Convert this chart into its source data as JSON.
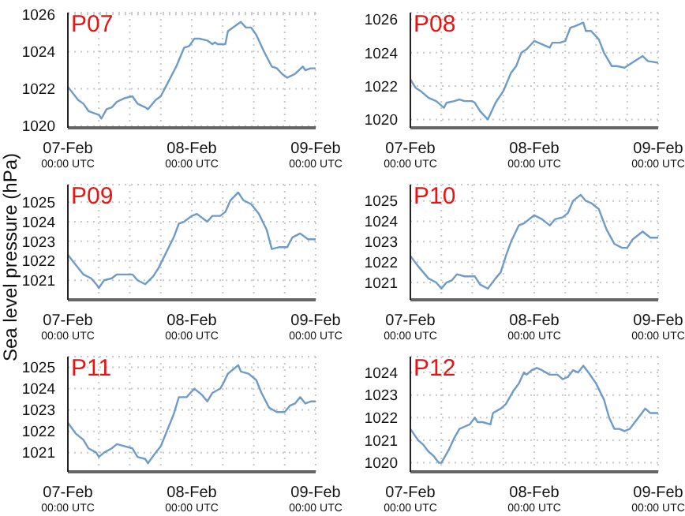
{
  "chart_data": [
    {
      "type": "line",
      "title": "P07",
      "x": [
        "--02-07T00:00",
        "--02-07T02:00",
        "--02-07T03:00",
        "--02-07T04:00",
        "--02-07T06:00",
        "--02-07T06:30",
        "--02-07T07:30",
        "--02-07T08:30",
        "--02-07T09:30",
        "--02-07T11:00",
        "--02-07T12:30",
        "--02-07T13:30",
        "--02-07T15:00",
        "--02-07T15:30",
        "--02-07T17:00",
        "--02-07T18:00",
        "--02-07T19:30",
        "--02-07T21:00",
        "--02-07T22:30",
        "--02-07T23:30",
        "--02-08T00:30",
        "--02-08T01:30",
        "--02-08T03:00",
        "--02-08T04:00",
        "--02-08T04:30",
        "--02-08T05:00",
        "--02-08T06:30",
        "--02-08T07:00",
        "--02-08T08:30",
        "--02-08T09:30",
        "--02-08T10:30",
        "--02-08T11:30",
        "--02-08T12:30",
        "--02-08T14:00",
        "--02-08T15:30",
        "--02-08T16:30",
        "--02-08T17:30",
        "--02-08T18:30",
        "--02-08T20:00",
        "--02-08T21:30",
        "--02-08T22:00",
        "--02-08T23:00",
        "--02-09T00:00"
      ],
      "series": [
        {
          "color": "#6f9bc8",
          "values": [
            1022.1,
            1021.4,
            1021.2,
            1020.8,
            1020.6,
            1020.4,
            1020.9,
            1021.0,
            1021.3,
            1021.5,
            1021.6,
            1021.2,
            1021.0,
            1020.9,
            1021.4,
            1021.6,
            1022.4,
            1023.2,
            1024.2,
            1024.3,
            1024.7,
            1024.7,
            1024.6,
            1024.4,
            1024.5,
            1024.4,
            1024.4,
            1025.1,
            1025.4,
            1025.6,
            1025.3,
            1025.3,
            1024.9,
            1024.0,
            1023.2,
            1023.1,
            1022.8,
            1022.6,
            1022.8,
            1023.2,
            1023.0,
            1023.1,
            1023.1
          ]
        }
      ],
      "xlim": [
        "--02-07T00:00",
        "--02-09T00:00"
      ],
      "xticks": [
        {
          "value": "--02-07T00:00",
          "label": "07-Feb\n00:00 UTC"
        },
        {
          "value": "--02-07T06:00",
          "label": null
        },
        {
          "value": "--02-07T12:00",
          "label": null
        },
        {
          "value": "--02-07T18:00",
          "label": null
        },
        {
          "value": "--02-08T00:00",
          "label": "08-Feb\n00:00 UTC"
        },
        {
          "value": "--02-08T06:00",
          "label": null
        },
        {
          "value": "--02-08T12:00",
          "label": null
        },
        {
          "value": "--02-08T18:00",
          "label": null
        },
        {
          "value": "--02-09T00:00",
          "label": "09-Feb\n00:00 UTC"
        }
      ],
      "ylim": [
        1019.9,
        1026.1
      ],
      "yticks": [
        1020,
        1022,
        1024,
        1026
      ],
      "grid": true
    },
    {
      "type": "line",
      "title": "P08",
      "x": [
        "--02-07T00:00",
        "--02-07T01:00",
        "--02-07T02:00",
        "--02-07T03:30",
        "--02-07T05:00",
        "--02-07T06:30",
        "--02-07T07:00",
        "--02-07T08:30",
        "--02-07T09:30",
        "--02-07T10:30",
        "--02-07T12:00",
        "--02-07T12:30",
        "--02-07T13:30",
        "--02-07T15:00",
        "--02-07T16:30",
        "--02-07T18:00",
        "--02-07T19:30",
        "--02-07T20:30",
        "--02-07T21:30",
        "--02-07T22:30",
        "--02-08T00:00",
        "--02-08T01:30",
        "--02-08T03:00",
        "--02-08T03:30",
        "--02-08T05:00",
        "--02-08T06:00",
        "--02-08T07:00",
        "--02-08T08:00",
        "--02-08T09:30",
        "--02-08T10:00",
        "--02-08T11:00",
        "--02-08T12:30",
        "--02-08T13:30",
        "--02-08T15:00",
        "--02-08T16:00",
        "--02-08T17:30",
        "--02-08T19:30",
        "--02-08T21:00",
        "--02-08T22:00",
        "--02-09T00:00"
      ],
      "series": [
        {
          "color": "#6f9bc8",
          "values": [
            1022.4,
            1021.9,
            1021.7,
            1021.3,
            1021.1,
            1020.7,
            1021.0,
            1021.1,
            1021.2,
            1021.1,
            1021.1,
            1021.0,
            1020.5,
            1020.0,
            1021.0,
            1021.7,
            1022.8,
            1023.2,
            1024.0,
            1024.2,
            1024.7,
            1024.5,
            1024.3,
            1024.6,
            1024.6,
            1024.7,
            1025.5,
            1025.6,
            1025.8,
            1025.3,
            1025.3,
            1024.8,
            1024.0,
            1023.2,
            1023.2,
            1023.1,
            1023.5,
            1023.8,
            1023.5,
            1023.4
          ]
        }
      ],
      "xlim": [
        "--02-07T00:00",
        "--02-09T00:00"
      ],
      "xticks": [
        {
          "value": "--02-07T00:00",
          "label": "07-Feb\n00:00 UTC"
        },
        {
          "value": "--02-07T06:00",
          "label": null
        },
        {
          "value": "--02-07T12:00",
          "label": null
        },
        {
          "value": "--02-07T18:00",
          "label": null
        },
        {
          "value": "--02-08T00:00",
          "label": "08-Feb\n00:00 UTC"
        },
        {
          "value": "--02-08T06:00",
          "label": null
        },
        {
          "value": "--02-08T12:00",
          "label": null
        },
        {
          "value": "--02-08T18:00",
          "label": null
        },
        {
          "value": "--02-09T00:00",
          "label": "09-Feb\n00:00 UTC"
        }
      ],
      "ylim": [
        1019.5,
        1026.4
      ],
      "yticks": [
        1020,
        1022,
        1024,
        1026
      ],
      "grid": true
    },
    {
      "type": "line",
      "title": "P09",
      "ylabel": "Sea level pressure (hPa)",
      "x": [
        "--02-07T00:00",
        "--02-07T01:30",
        "--02-07T03:00",
        "--02-07T04:30",
        "--02-07T05:30",
        "--02-07T06:00",
        "--02-07T07:00",
        "--02-07T08:30",
        "--02-07T09:30",
        "--02-07T11:00",
        "--02-07T12:30",
        "--02-07T13:30",
        "--02-07T15:00",
        "--02-07T16:30",
        "--02-07T17:30",
        "--02-07T19:00",
        "--02-07T20:30",
        "--02-07T21:30",
        "--02-07T22:30",
        "--02-08T00:00",
        "--02-08T01:00",
        "--02-08T03:00",
        "--02-08T04:00",
        "--02-08T05:30",
        "--02-08T06:30",
        "--02-08T07:30",
        "--02-08T09:00",
        "--02-08T10:00",
        "--02-08T11:30",
        "--02-08T13:00",
        "--02-08T14:30",
        "--02-08T15:30",
        "--02-08T17:00",
        "--02-08T18:30",
        "--02-08T19:30",
        "--02-08T21:00",
        "--02-08T22:30",
        "--02-09T00:00"
      ],
      "series": [
        {
          "color": "#6f9bc8",
          "values": [
            1022.3,
            1021.8,
            1021.3,
            1021.1,
            1020.8,
            1020.6,
            1021.0,
            1021.1,
            1021.3,
            1021.3,
            1021.3,
            1021.0,
            1020.8,
            1021.2,
            1021.6,
            1022.4,
            1023.2,
            1023.9,
            1024.0,
            1024.3,
            1024.4,
            1024.0,
            1024.3,
            1024.3,
            1024.5,
            1025.1,
            1025.5,
            1025.1,
            1024.9,
            1024.4,
            1023.6,
            1022.6,
            1022.7,
            1022.7,
            1023.2,
            1023.4,
            1023.1,
            1023.1
          ]
        }
      ],
      "xlim": [
        "--02-07T00:00",
        "--02-09T00:00"
      ],
      "xticks": [
        {
          "value": "--02-07T00:00",
          "label": "07-Feb\n00:00 UTC"
        },
        {
          "value": "--02-07T06:00",
          "label": null
        },
        {
          "value": "--02-07T12:00",
          "label": null
        },
        {
          "value": "--02-07T18:00",
          "label": null
        },
        {
          "value": "--02-08T00:00",
          "label": "08-Feb\n00:00 UTC"
        },
        {
          "value": "--02-08T06:00",
          "label": null
        },
        {
          "value": "--02-08T12:00",
          "label": null
        },
        {
          "value": "--02-08T18:00",
          "label": null
        },
        {
          "value": "--02-09T00:00",
          "label": "09-Feb\n00:00 UTC"
        }
      ],
      "ylim": [
        1020,
        1025.9
      ],
      "yticks": [
        1021,
        1022,
        1023,
        1024,
        1025
      ],
      "grid": true
    },
    {
      "type": "line",
      "title": "P10",
      "x": [
        "--02-07T00:00",
        "--02-07T01:30",
        "--02-07T03:30",
        "--02-07T05:00",
        "--02-07T06:00",
        "--02-07T07:00",
        "--02-07T08:00",
        "--02-07T09:00",
        "--02-07T10:30",
        "--02-07T12:30",
        "--02-07T13:30",
        "--02-07T15:00",
        "--02-07T16:30",
        "--02-07T17:30",
        "--02-07T18:30",
        "--02-07T19:30",
        "--02-07T21:00",
        "--02-07T22:00",
        "--02-08T00:00",
        "--02-08T01:30",
        "--02-08T03:00",
        "--02-08T04:00",
        "--02-08T05:30",
        "--02-08T06:30",
        "--02-08T07:30",
        "--02-08T09:00",
        "--02-08T10:00",
        "--02-08T11:00",
        "--02-08T12:30",
        "--02-08T14:00",
        "--02-08T15:30",
        "--02-08T17:00",
        "--02-08T18:00",
        "--02-08T19:00",
        "--02-08T20:30",
        "--02-08T21:00",
        "--02-08T22:30",
        "--02-09T00:00"
      ],
      "series": [
        {
          "color": "#6f9bc8",
          "values": [
            1022.3,
            1021.8,
            1021.2,
            1021.0,
            1020.7,
            1021.0,
            1021.1,
            1021.4,
            1021.3,
            1021.3,
            1020.9,
            1020.7,
            1021.2,
            1021.5,
            1022.3,
            1023.0,
            1023.8,
            1023.9,
            1024.3,
            1024.1,
            1023.8,
            1024.1,
            1024.2,
            1024.4,
            1025.0,
            1025.3,
            1025.0,
            1024.9,
            1024.6,
            1023.6,
            1022.9,
            1022.7,
            1022.7,
            1023.1,
            1023.4,
            1023.5,
            1023.2,
            1023.2
          ]
        }
      ],
      "xlim": [
        "--02-07T00:00",
        "--02-09T00:00"
      ],
      "xticks": [
        {
          "value": "--02-07T00:00",
          "label": "07-Feb\n00:00 UTC"
        },
        {
          "value": "--02-07T06:00",
          "label": null
        },
        {
          "value": "--02-07T12:00",
          "label": null
        },
        {
          "value": "--02-07T18:00",
          "label": null
        },
        {
          "value": "--02-08T00:00",
          "label": "08-Feb\n00:00 UTC"
        },
        {
          "value": "--02-08T06:00",
          "label": null
        },
        {
          "value": "--02-08T12:00",
          "label": null
        },
        {
          "value": "--02-08T18:00",
          "label": null
        },
        {
          "value": "--02-09T00:00",
          "label": "09-Feb\n00:00 UTC"
        }
      ],
      "ylim": [
        1020.15,
        1025.8
      ],
      "yticks": [
        1021,
        1022,
        1023,
        1024,
        1025
      ],
      "grid": true
    },
    {
      "type": "line",
      "title": "P11",
      "x": [
        "--02-07T00:00",
        "--02-07T01:30",
        "--02-07T03:00",
        "--02-07T04:00",
        "--02-07T05:30",
        "--02-07T06:00",
        "--02-07T07:00",
        "--02-07T08:30",
        "--02-07T09:30",
        "--02-07T11:00",
        "--02-07T12:30",
        "--02-07T13:30",
        "--02-07T15:00",
        "--02-07T15:30",
        "--02-07T17:00",
        "--02-07T18:00",
        "--02-07T19:30",
        "--02-07T20:30",
        "--02-07T21:30",
        "--02-07T23:00",
        "--02-08T00:30",
        "--02-08T02:00",
        "--02-08T03:00",
        "--02-08T04:00",
        "--02-08T05:30",
        "--02-08T06:00",
        "--02-08T07:00",
        "--02-08T08:00",
        "--02-08T09:00",
        "--02-08T09:30",
        "--02-08T11:00",
        "--02-08T12:30",
        "--02-08T13:30",
        "--02-08T15:00",
        "--02-08T16:30",
        "--02-08T18:00",
        "--02-08T19:00",
        "--02-08T20:00",
        "--02-08T21:00",
        "--02-08T22:00",
        "--02-08T23:00",
        "--02-09T00:00"
      ],
      "series": [
        {
          "color": "#6f9bc8",
          "values": [
            1022.4,
            1021.9,
            1021.6,
            1021.2,
            1021.0,
            1020.8,
            1021.0,
            1021.2,
            1021.4,
            1021.3,
            1021.2,
            1020.8,
            1020.7,
            1020.5,
            1021.0,
            1021.3,
            1022.2,
            1022.8,
            1023.6,
            1023.6,
            1024.0,
            1023.7,
            1023.4,
            1023.8,
            1024.0,
            1024.2,
            1024.7,
            1024.9,
            1025.1,
            1024.8,
            1024.7,
            1024.4,
            1023.8,
            1023.1,
            1022.9,
            1022.9,
            1023.2,
            1023.3,
            1023.6,
            1023.3,
            1023.4,
            1023.4
          ]
        }
      ],
      "xlim": [
        "--02-07T00:00",
        "--02-09T00:00"
      ],
      "xticks": [
        {
          "value": "--02-07T00:00",
          "label": "07-Feb\n00:00 UTC"
        },
        {
          "value": "--02-07T06:00",
          "label": null
        },
        {
          "value": "--02-07T12:00",
          "label": null
        },
        {
          "value": "--02-07T18:00",
          "label": null
        },
        {
          "value": "--02-08T00:00",
          "label": "08-Feb\n00:00 UTC"
        },
        {
          "value": "--02-08T06:00",
          "label": null
        },
        {
          "value": "--02-08T12:00",
          "label": null
        },
        {
          "value": "--02-08T18:00",
          "label": null
        },
        {
          "value": "--02-09T00:00",
          "label": "09-Feb\n00:00 UTC"
        }
      ],
      "ylim": [
        1020.1,
        1025.5
      ],
      "yticks": [
        1021,
        1022,
        1023,
        1024,
        1025
      ],
      "grid": true
    },
    {
      "type": "line",
      "title": "P12",
      "x": [
        "--02-07T00:00",
        "--02-07T01:30",
        "--02-07T02:30",
        "--02-07T03:30",
        "--02-07T04:30",
        "--02-07T05:30",
        "--02-07T06:00",
        "--02-07T07:30",
        "--02-07T08:30",
        "--02-07T09:30",
        "--02-07T10:30",
        "--02-07T11:30",
        "--02-07T12:30",
        "--02-07T13:00",
        "--02-07T14:00",
        "--02-07T15:30",
        "--02-07T16:00",
        "--02-07T17:30",
        "--02-07T18:30",
        "--02-07T20:00",
        "--02-07T21:00",
        "--02-07T22:00",
        "--02-07T22:30",
        "--02-07T23:30",
        "--02-08T00:30",
        "--02-08T01:30",
        "--02-08T03:00",
        "--02-08T04:30",
        "--02-08T05:30",
        "--02-08T06:30",
        "--02-08T07:30",
        "--02-08T08:30",
        "--02-08T09:30",
        "--02-08T10:30",
        "--02-08T12:00",
        "--02-08T13:30",
        "--02-08T14:30",
        "--02-08T15:30",
        "--02-08T16:30",
        "--02-08T17:30",
        "--02-08T18:30",
        "--02-08T19:30",
        "--02-08T20:30",
        "--02-08T21:30",
        "--02-08T22:30",
        "--02-09T00:00"
      ],
      "series": [
        {
          "color": "#6f9bc8",
          "values": [
            1021.5,
            1021.0,
            1020.8,
            1020.5,
            1020.3,
            1020.0,
            1020.0,
            1020.6,
            1021.1,
            1021.5,
            1021.6,
            1021.7,
            1022.0,
            1021.8,
            1021.8,
            1021.7,
            1022.2,
            1022.4,
            1022.6,
            1023.2,
            1023.5,
            1024.0,
            1023.9,
            1024.1,
            1024.2,
            1024.1,
            1023.9,
            1023.9,
            1023.7,
            1023.8,
            1024.1,
            1024.0,
            1024.3,
            1024.0,
            1023.5,
            1022.8,
            1022.0,
            1021.5,
            1021.5,
            1021.4,
            1021.5,
            1021.8,
            1022.1,
            1022.4,
            1022.2,
            1022.2
          ]
        }
      ],
      "xlim": [
        "--02-07T00:00",
        "--02-09T00:00"
      ],
      "xticks": [
        {
          "value": "--02-07T00:00",
          "label": "07-Feb\n00:00 UTC"
        },
        {
          "value": "--02-07T06:00",
          "label": null
        },
        {
          "value": "--02-07T12:00",
          "label": null
        },
        {
          "value": "--02-07T18:00",
          "label": null
        },
        {
          "value": "--02-08T00:00",
          "label": "08-Feb\n00:00 UTC"
        },
        {
          "value": "--02-08T06:00",
          "label": null
        },
        {
          "value": "--02-08T12:00",
          "label": null
        },
        {
          "value": "--02-08T18:00",
          "label": null
        },
        {
          "value": "--02-09T00:00",
          "label": "09-Feb\n00:00 UTC"
        }
      ],
      "ylim": [
        1019.6,
        1024.7
      ],
      "yticks": [
        1020,
        1021,
        1022,
        1023,
        1024
      ],
      "grid": true
    }
  ]
}
